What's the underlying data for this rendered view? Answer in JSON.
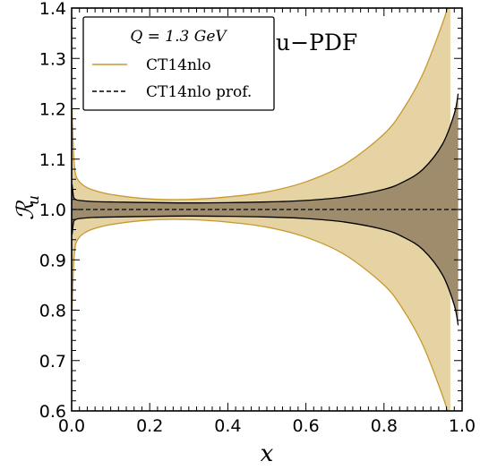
{
  "chart_data": {
    "type": "area",
    "xlabel": "x",
    "ylabel": "ℛ_u",
    "ylabel_main": "ℛ",
    "ylabel_sub": "u",
    "xlim": [
      0.0,
      1.0
    ],
    "ylim": [
      0.6,
      1.4
    ],
    "x_ticks": [
      "0.0",
      "0.2",
      "0.4",
      "0.6",
      "0.8",
      "1.0"
    ],
    "y_ticks": [
      "0.6",
      "0.7",
      "0.8",
      "0.9",
      "1.0",
      "1.1",
      "1.2",
      "1.3",
      "1.4"
    ],
    "annotation": "u−PDF",
    "legend": {
      "placement": "top-left",
      "title": "Q = 1.3 GeV",
      "entries": [
        "CT14nlo",
        "CT14nlo prof."
      ]
    },
    "colors": {
      "outer_fill": "#e6d3a3",
      "outer_line": "#c8992e",
      "inner_fill": "#9e8c6c",
      "inner_line": "#000000",
      "central_line": "#000000"
    },
    "series": [
      {
        "name": "CT14nlo",
        "x": [
          0.001,
          0.005,
          0.01,
          0.02,
          0.03,
          0.05,
          0.1,
          0.2,
          0.3,
          0.4,
          0.5,
          0.6,
          0.7,
          0.8,
          0.85,
          0.9,
          0.95,
          0.97
        ],
        "upper": [
          1.2,
          1.11,
          1.07,
          1.055,
          1.048,
          1.04,
          1.03,
          1.021,
          1.02,
          1.025,
          1.035,
          1.055,
          1.09,
          1.15,
          1.2,
          1.27,
          1.37,
          1.42
        ],
        "lower": [
          0.8,
          0.89,
          0.93,
          0.945,
          0.952,
          0.96,
          0.97,
          0.979,
          0.98,
          0.975,
          0.965,
          0.945,
          0.91,
          0.85,
          0.8,
          0.73,
          0.63,
          0.58
        ]
      },
      {
        "name": "CT14nlo prof.",
        "x": [
          0.001,
          0.005,
          0.01,
          0.02,
          0.05,
          0.1,
          0.3,
          0.5,
          0.6,
          0.7,
          0.8,
          0.85,
          0.9,
          0.95,
          0.98,
          0.99
        ],
        "upper": [
          1.05,
          1.025,
          1.02,
          1.018,
          1.016,
          1.015,
          1.013,
          1.015,
          1.018,
          1.025,
          1.04,
          1.055,
          1.08,
          1.13,
          1.19,
          1.23
        ],
        "lower": [
          0.95,
          0.975,
          0.98,
          0.982,
          0.984,
          0.985,
          0.987,
          0.985,
          0.982,
          0.975,
          0.96,
          0.945,
          0.92,
          0.87,
          0.81,
          0.77
        ],
        "central": 1.0
      }
    ]
  }
}
